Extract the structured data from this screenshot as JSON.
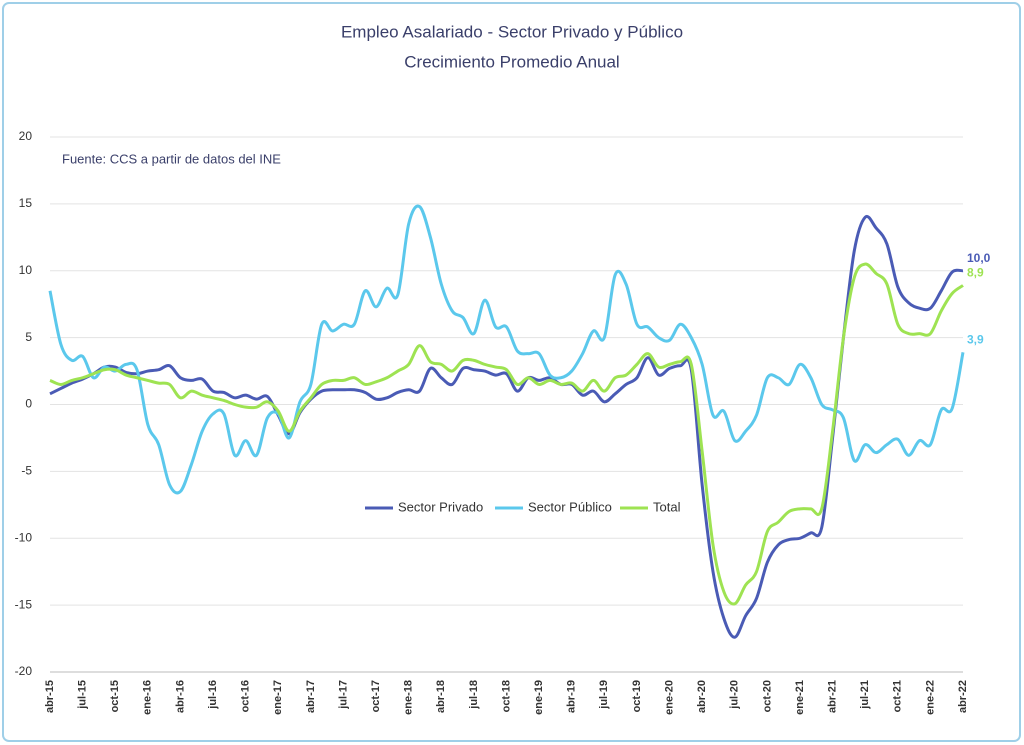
{
  "chart_data": {
    "type": "line",
    "title": "Empleo Asalariado - Sector Privado y Público",
    "subtitle": "Crecimiento Promedio Anual",
    "annotation": "Fuente: CCS a partir de datos del INE",
    "categories": [
      "abr-15",
      null,
      null,
      "jul-15",
      null,
      null,
      "oct-15",
      null,
      null,
      "ene-16",
      null,
      null,
      "abr-16",
      null,
      null,
      "jul-16",
      null,
      null,
      "oct-16",
      null,
      null,
      "ene-17",
      null,
      null,
      "abr-17",
      null,
      null,
      "jul-17",
      null,
      null,
      "oct-17",
      null,
      null,
      "ene-18",
      null,
      null,
      "abr-18",
      null,
      null,
      "jul-18",
      null,
      null,
      "oct-18",
      null,
      null,
      "ene-19",
      null,
      null,
      "abr-19",
      null,
      null,
      "jul-19",
      null,
      null,
      "oct-19",
      null,
      null,
      "ene-20",
      null,
      null,
      "abr-20",
      null,
      null,
      "jul-20",
      null,
      null,
      "oct-20",
      null,
      null,
      "ene-21",
      null,
      null,
      "abr-21",
      null,
      null,
      "jul-21",
      null,
      null,
      "oct-21",
      null,
      null,
      "ene-22",
      null,
      null,
      "abr-22"
    ],
    "series": [
      {
        "name": "Sector Privado",
        "color": "#4a5bb5",
        "values": [
          0.8,
          1.2,
          1.6,
          1.9,
          2.3,
          2.8,
          2.8,
          2.4,
          2.3,
          2.5,
          2.6,
          2.9,
          2.0,
          1.8,
          1.9,
          1.0,
          0.9,
          0.5,
          0.7,
          0.4,
          0.6,
          -0.8,
          -2.2,
          -0.6,
          0.4,
          1.0,
          1.1,
          1.1,
          1.1,
          0.9,
          0.4,
          0.5,
          0.9,
          1.1,
          1.0,
          2.7,
          2.0,
          1.5,
          2.7,
          2.6,
          2.5,
          2.2,
          2.3,
          1.0,
          2.0,
          1.8,
          2.0,
          1.5,
          1.5,
          0.7,
          1.0,
          0.2,
          0.8,
          1.5,
          2.0,
          3.5,
          2.2,
          2.7,
          2.9,
          2.6,
          -6.0,
          -12.5,
          -16.0,
          -17.4,
          -15.8,
          -14.5,
          -11.8,
          -10.5,
          -10.1,
          -10.0,
          -9.6,
          -9.2,
          -2.5,
          5.0,
          11.5,
          14.0,
          13.2,
          12.0,
          8.8,
          7.6,
          7.2,
          7.2,
          8.5,
          9.9,
          10.0
        ],
        "value_labels": [
          null,
          null,
          null,
          null,
          null,
          null,
          null,
          null,
          null,
          null,
          null,
          null,
          null,
          null,
          null,
          null,
          null,
          null,
          null,
          null,
          null,
          null,
          null,
          null,
          null,
          null,
          null,
          null,
          null,
          null,
          null,
          null,
          null,
          null,
          null,
          null,
          null,
          null,
          null,
          null,
          null,
          null,
          null,
          null,
          null,
          null,
          null,
          null,
          null,
          null,
          null,
          null,
          null,
          null,
          null,
          null,
          null,
          null,
          null,
          null,
          null,
          null,
          null,
          null,
          null,
          null,
          null,
          null,
          null,
          null,
          null,
          null,
          null,
          null,
          null,
          null,
          null,
          null,
          null,
          null,
          null,
          null,
          null,
          null,
          "10,0"
        ]
      },
      {
        "name": "Sector Público",
        "color": "#5bc8ec",
        "values": [
          8.5,
          4.5,
          3.3,
          3.6,
          2.0,
          2.8,
          2.5,
          3.0,
          2.6,
          -1.5,
          -3.0,
          -6.0,
          -6.5,
          -4.5,
          -2.0,
          -0.7,
          -0.7,
          -3.8,
          -2.7,
          -3.8,
          -1.0,
          -0.7,
          -2.5,
          0.2,
          1.5,
          6.0,
          5.5,
          6.0,
          6.0,
          8.5,
          7.3,
          8.7,
          8.2,
          13.5,
          14.8,
          12.5,
          9.0,
          7.0,
          6.5,
          5.3,
          7.8,
          5.8,
          5.8,
          4.0,
          3.8,
          3.8,
          2.2,
          2.0,
          2.5,
          3.8,
          5.5,
          5.0,
          9.7,
          9.0,
          6.0,
          5.8,
          5.0,
          4.8,
          6.0,
          5.0,
          3.0,
          -0.8,
          -0.5,
          -2.7,
          -2.0,
          -0.8,
          2.0,
          2.0,
          1.5,
          3.0,
          2.0,
          0.0,
          -0.4,
          -1.0,
          -4.2,
          -3.0,
          -3.6,
          -3.0,
          -2.6,
          -3.8,
          -2.7,
          -3.0,
          -0.4,
          -0.3,
          3.9
        ],
        "value_labels": [
          null,
          null,
          null,
          null,
          null,
          null,
          null,
          null,
          null,
          null,
          null,
          null,
          null,
          null,
          null,
          null,
          null,
          null,
          null,
          null,
          null,
          null,
          null,
          null,
          null,
          null,
          null,
          null,
          null,
          null,
          null,
          null,
          null,
          null,
          null,
          null,
          null,
          null,
          null,
          null,
          null,
          null,
          null,
          null,
          null,
          null,
          null,
          null,
          null,
          null,
          null,
          null,
          null,
          null,
          null,
          null,
          null,
          null,
          null,
          null,
          null,
          null,
          null,
          null,
          null,
          null,
          null,
          null,
          null,
          null,
          null,
          null,
          null,
          null,
          null,
          null,
          null,
          null,
          null,
          null,
          null,
          null,
          null,
          null,
          "3,9"
        ]
      },
      {
        "name": "Total",
        "color": "#9ee352",
        "values": [
          1.8,
          1.5,
          1.8,
          2.0,
          2.3,
          2.6,
          2.6,
          2.2,
          2.0,
          1.8,
          1.6,
          1.5,
          0.5,
          1.0,
          0.7,
          0.5,
          0.3,
          0.0,
          -0.2,
          -0.2,
          0.2,
          -0.5,
          -2.0,
          -0.5,
          0.5,
          1.5,
          1.8,
          1.8,
          2.0,
          1.5,
          1.7,
          2.0,
          2.5,
          3.0,
          4.4,
          3.2,
          3.0,
          2.5,
          3.3,
          3.3,
          3.0,
          2.8,
          2.6,
          1.5,
          2.0,
          1.5,
          1.8,
          1.5,
          1.6,
          1.0,
          1.8,
          1.0,
          2.0,
          2.2,
          3.0,
          3.8,
          2.8,
          3.0,
          3.2,
          3.0,
          -3.5,
          -10.5,
          -14.0,
          -14.9,
          -13.5,
          -12.5,
          -9.5,
          -8.8,
          -8.0,
          -7.8,
          -7.8,
          -7.8,
          -2.0,
          5.0,
          9.5,
          10.5,
          9.8,
          9.0,
          6.0,
          5.3,
          5.3,
          5.3,
          7.0,
          8.3,
          8.9
        ],
        "value_labels": [
          null,
          null,
          null,
          null,
          null,
          null,
          null,
          null,
          null,
          null,
          null,
          null,
          null,
          null,
          null,
          null,
          null,
          null,
          null,
          null,
          null,
          null,
          null,
          null,
          null,
          null,
          null,
          null,
          null,
          null,
          null,
          null,
          null,
          null,
          null,
          null,
          null,
          null,
          null,
          null,
          null,
          null,
          null,
          null,
          null,
          null,
          null,
          null,
          null,
          null,
          null,
          null,
          null,
          null,
          null,
          null,
          null,
          null,
          null,
          null,
          null,
          null,
          null,
          null,
          null,
          null,
          null,
          null,
          null,
          null,
          null,
          null,
          null,
          null,
          null,
          null,
          null,
          null,
          null,
          null,
          null,
          null,
          null,
          null,
          "8,9"
        ]
      }
    ],
    "ylim": [
      -20,
      20
    ],
    "yticks": [
      -20,
      -15,
      -10,
      -5,
      0,
      5,
      10,
      15,
      20
    ],
    "grid": true,
    "legend": "center"
  }
}
